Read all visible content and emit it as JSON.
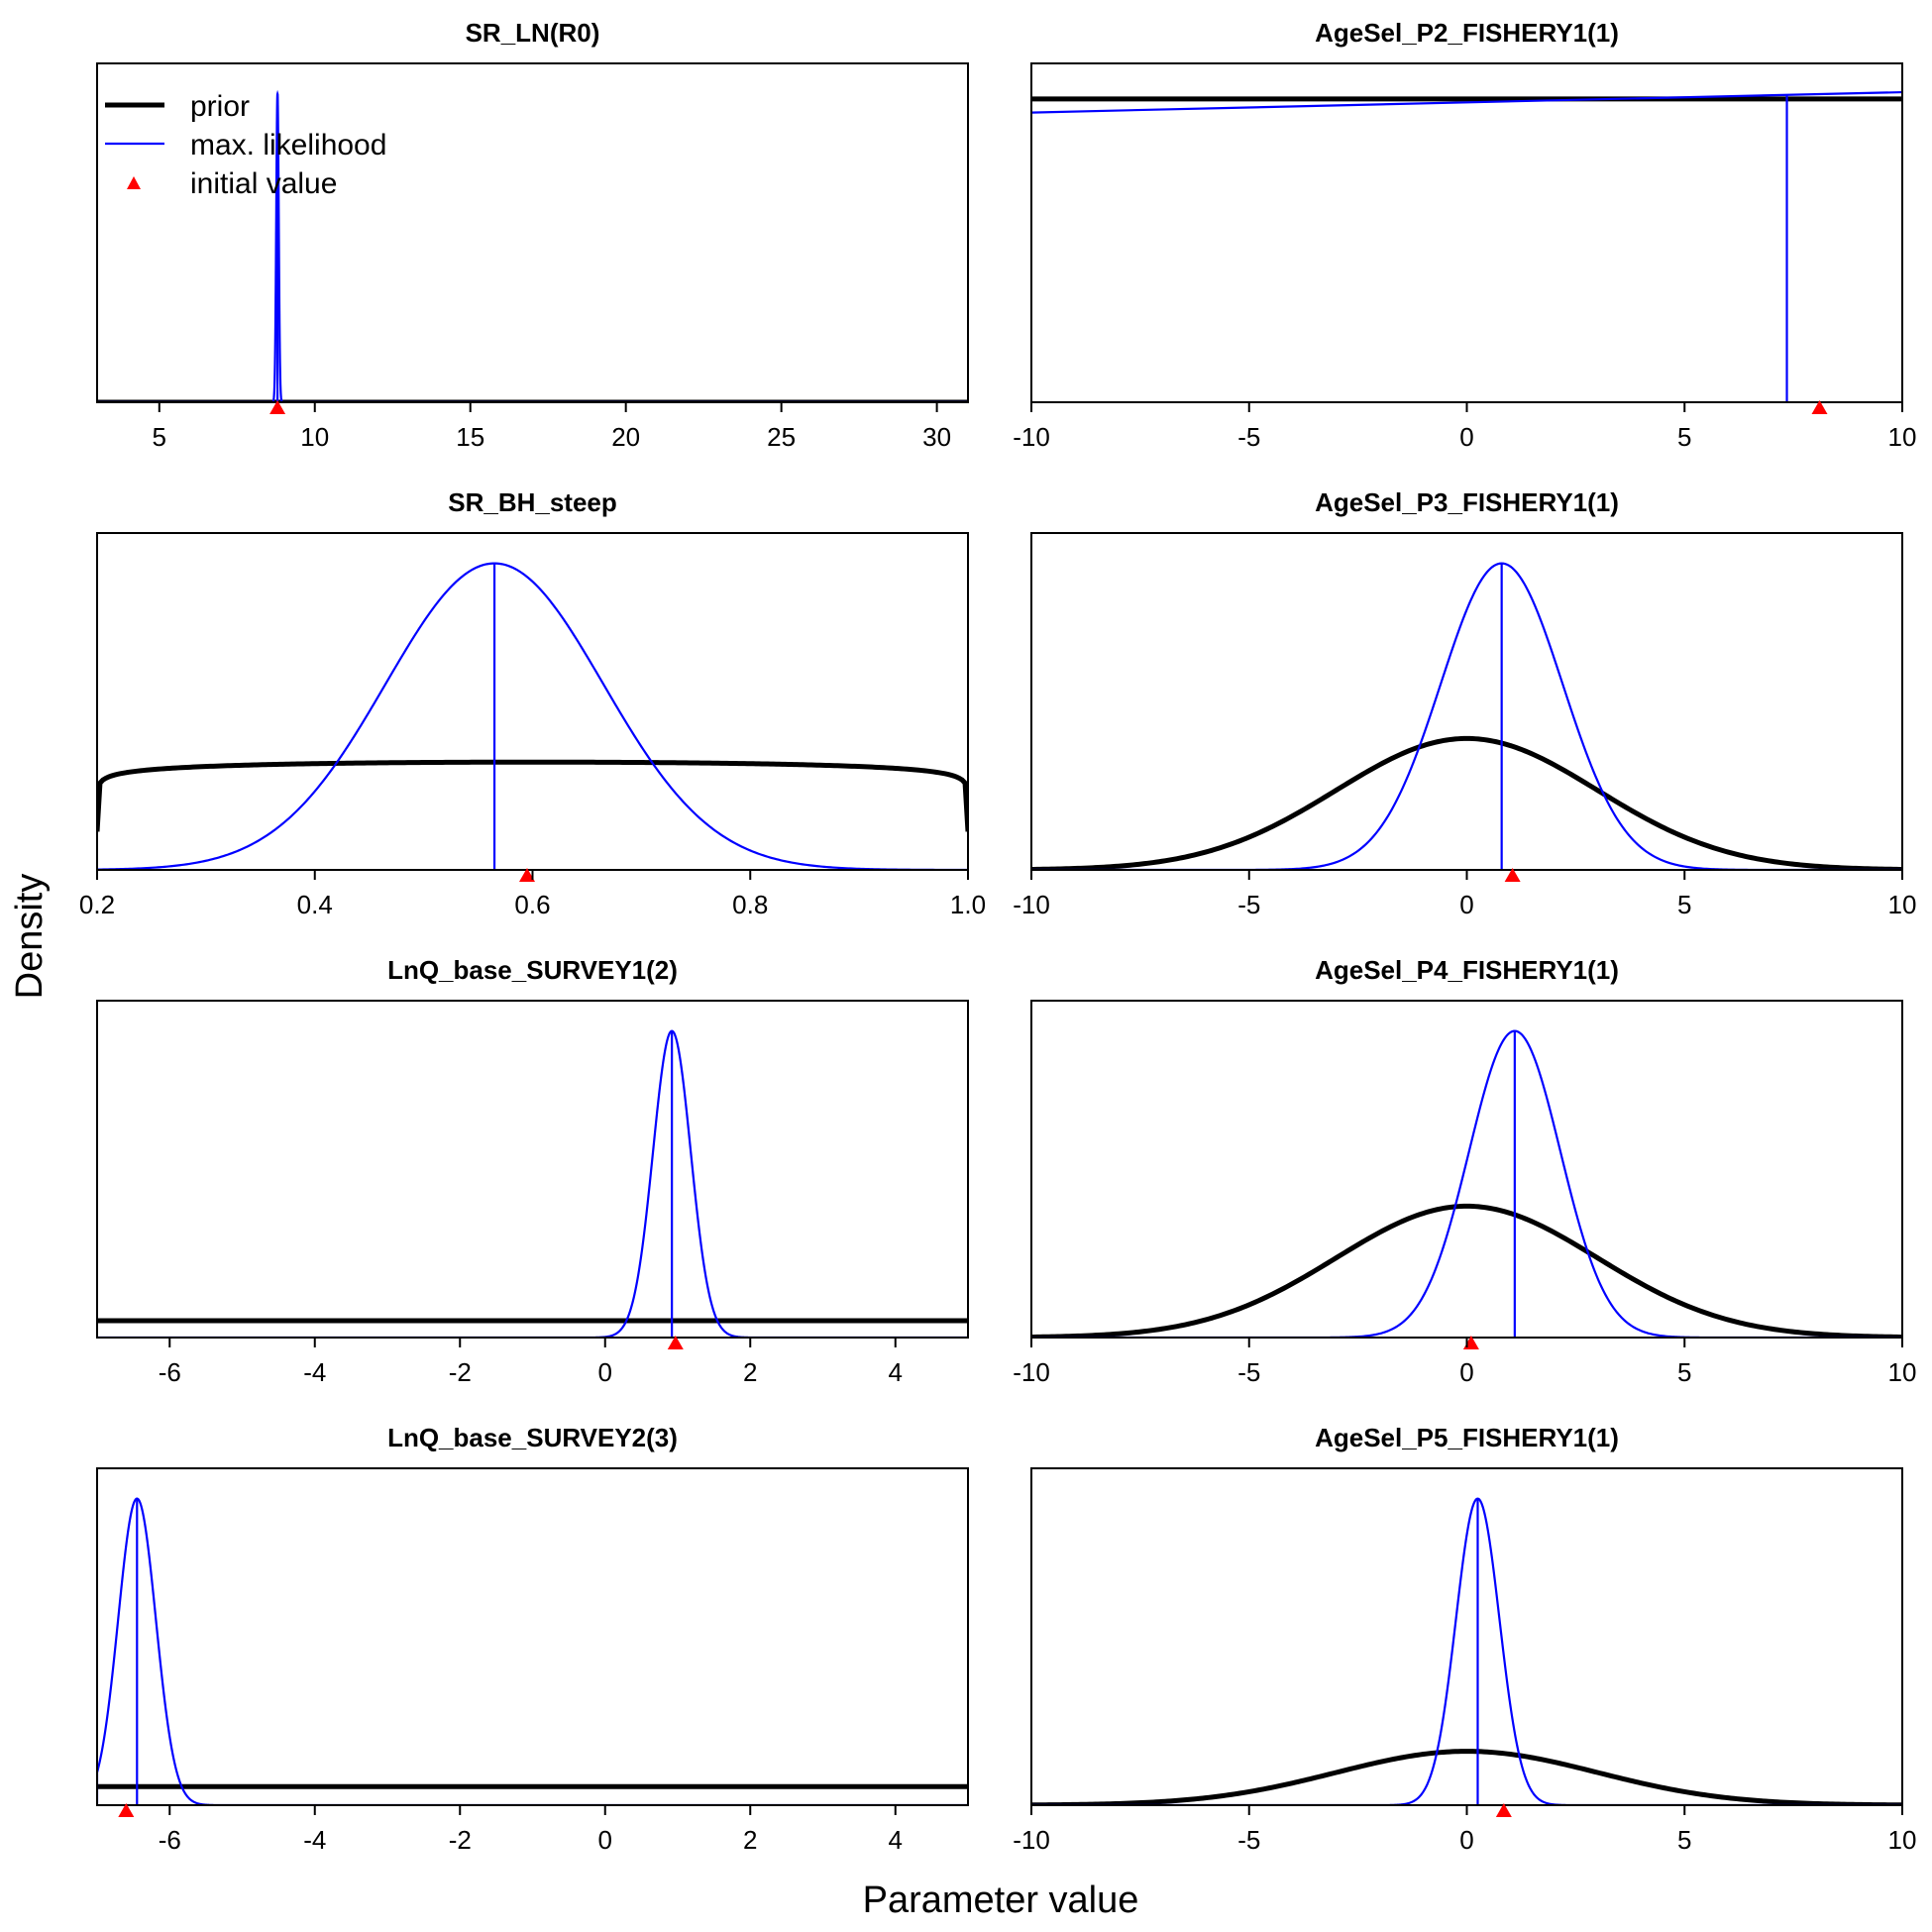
{
  "figure": {
    "ylabel": "Density",
    "xlabel": "Parameter value",
    "colors": {
      "prior": "#000000",
      "ml": "#0000ff",
      "init": "#ff0000"
    }
  },
  "legend": {
    "placement": "top-left",
    "items": [
      {
        "label": "prior",
        "color": "#000000",
        "kind": "thick-line"
      },
      {
        "label": "max. likelihood",
        "color": "#0000ff",
        "kind": "thin-line"
      },
      {
        "label": "initial value",
        "color": "#ff0000",
        "kind": "triangle"
      }
    ]
  },
  "chart_data": [
    {
      "type": "line",
      "title": "SR_LN(R0)",
      "xlim": [
        3,
        31
      ],
      "xticks": [
        5,
        10,
        15,
        20,
        25,
        30
      ],
      "tick_labels": [
        "5",
        "10",
        "15",
        "20",
        "25",
        "30"
      ],
      "prior": {
        "dist": "flat",
        "level": 0.0
      },
      "ml": {
        "mean": 8.8,
        "sd": 0.04
      },
      "initial_value": 8.8,
      "show_legend": true
    },
    {
      "type": "line",
      "title": "AgeSel_P2_FISHERY1(1)",
      "xlim": [
        -10,
        10
      ],
      "xticks": [
        -10,
        -5,
        0,
        5,
        10
      ],
      "tick_labels": [
        "-10",
        "-5",
        "0",
        "5",
        "10"
      ],
      "prior": {
        "dist": "flat",
        "level": 0.895
      },
      "ml": {
        "dist": "linear",
        "from": [
          -10,
          0.855
        ],
        "to": [
          10,
          0.915
        ],
        "estimate": 7.35
      },
      "initial_value": 8.1,
      "show_legend": false
    },
    {
      "type": "line",
      "title": "SR_BH_steep",
      "xlim": [
        0.2,
        1.0
      ],
      "xticks": [
        0.2,
        0.4,
        0.6,
        0.8,
        1.0
      ],
      "tick_labels": [
        "0.2",
        "0.4",
        "0.6",
        "0.8",
        "1.0"
      ],
      "prior": {
        "dist": "beta-flat",
        "level": 0.32
      },
      "ml": {
        "mean": 0.565,
        "sd": 0.1
      },
      "initial_value": 0.595,
      "show_legend": false
    },
    {
      "type": "line",
      "title": "AgeSel_P3_FISHERY1(1)",
      "xlim": [
        -10,
        10
      ],
      "xticks": [
        -10,
        -5,
        0,
        5,
        10
      ],
      "tick_labels": [
        "-10",
        "-5",
        "0",
        "5",
        "10"
      ],
      "prior": {
        "dist": "normal",
        "mean": 0,
        "sd": 3,
        "peak": 0.39
      },
      "ml": {
        "mean": 0.8,
        "sd": 1.4
      },
      "initial_value": 1.05,
      "show_legend": false
    },
    {
      "type": "line",
      "title": "LnQ_base_SURVEY1(2)",
      "xlim": [
        -7,
        5
      ],
      "xticks": [
        -6,
        -4,
        -2,
        0,
        2,
        4
      ],
      "tick_labels": [
        "-6",
        "-4",
        "-2",
        "0",
        "2",
        "4"
      ],
      "prior": {
        "dist": "flat",
        "level": 0.05
      },
      "ml": {
        "mean": 0.92,
        "sd": 0.26
      },
      "initial_value": 0.97,
      "show_legend": false
    },
    {
      "type": "line",
      "title": "AgeSel_P4_FISHERY1(1)",
      "xlim": [
        -10,
        10
      ],
      "xticks": [
        -10,
        -5,
        0,
        5,
        10
      ],
      "tick_labels": [
        "-10",
        "-5",
        "0",
        "5",
        "10"
      ],
      "prior": {
        "dist": "normal",
        "mean": 0,
        "sd": 3,
        "peak": 0.39
      },
      "ml": {
        "mean": 1.1,
        "sd": 1.05
      },
      "initial_value": 0.1,
      "show_legend": false
    },
    {
      "type": "line",
      "title": "LnQ_base_SURVEY2(3)",
      "xlim": [
        -7,
        5
      ],
      "xticks": [
        -6,
        -4,
        -2,
        0,
        2,
        4
      ],
      "tick_labels": [
        "-6",
        "-4",
        "-2",
        "0",
        "2",
        "4"
      ],
      "prior": {
        "dist": "flat",
        "level": 0.055
      },
      "ml": {
        "mean": -6.45,
        "sd": 0.26
      },
      "initial_value": -6.6,
      "show_legend": false
    },
    {
      "type": "line",
      "title": "AgeSel_P5_FISHERY1(1)",
      "xlim": [
        -10,
        10
      ],
      "xticks": [
        -10,
        -5,
        0,
        5,
        10
      ],
      "tick_labels": [
        "-10",
        "-5",
        "0",
        "5",
        "10"
      ],
      "prior": {
        "dist": "normal",
        "mean": 0,
        "sd": 3,
        "peak": 0.16
      },
      "ml": {
        "mean": 0.25,
        "sd": 0.5
      },
      "initial_value": 0.85,
      "show_legend": false
    }
  ]
}
